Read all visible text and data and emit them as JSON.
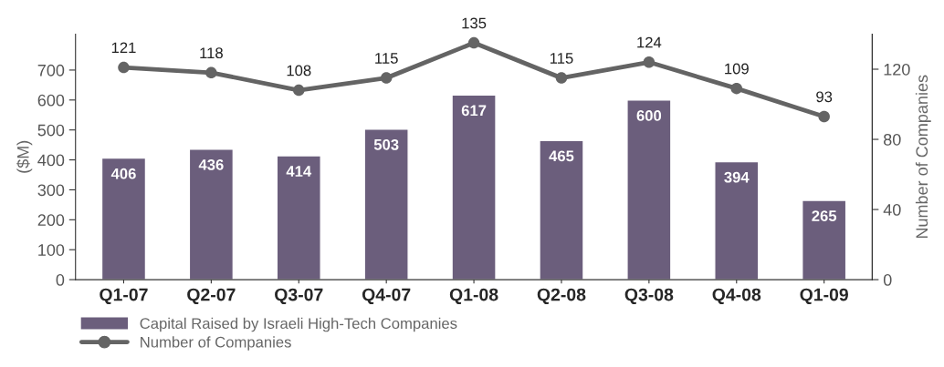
{
  "chart_data": {
    "type": "bar",
    "categories": [
      "Q1-07",
      "Q2-07",
      "Q3-07",
      "Q4-07",
      "Q1-08",
      "Q2-08",
      "Q3-08",
      "Q4-08",
      "Q1-09"
    ],
    "series": [
      {
        "name": "Capital Raised by Israeli High-Tech Companies",
        "color": "#6b5e7c",
        "values": [
          406,
          436,
          414,
          503,
          617,
          465,
          600,
          394,
          265
        ]
      },
      {
        "name": "Number of Companies",
        "type": "line",
        "axis": "y2",
        "color": "#646464",
        "marker": "circle",
        "values": [
          121,
          118,
          108,
          115,
          135,
          115,
          124,
          109,
          93
        ]
      }
    ],
    "ylabel": "($M)",
    "y2label": "Number of Companies",
    "ylim": [
      0,
      820
    ],
    "yticks": [
      0,
      100,
      200,
      300,
      400,
      500,
      600,
      700
    ],
    "y2lim": [
      0,
      140
    ],
    "y2ticks": [
      0,
      40,
      80,
      120
    ],
    "data_labels": true,
    "legend": "bottom left",
    "grid": false
  }
}
